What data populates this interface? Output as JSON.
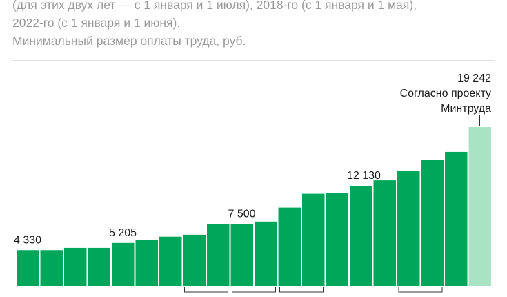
{
  "header": {
    "lines": [
      "(для этих двух лет — с 1 января и 1 июля), 2018-го (с 1 января и 1 мая),",
      "2022-го (с 1 января и 1 июня).",
      "Минимальный размер оплаты труда, руб."
    ]
  },
  "colors": {
    "bar": "#00a65a",
    "projected_bar": "#a8e3c3",
    "text": "#1a1a1a",
    "header_text": "#9a9a9a"
  },
  "chart_data": {
    "type": "bar",
    "title": "",
    "ylabel": "",
    "xlabel": "",
    "values": [
      4330,
      4330,
      4611,
      4611,
      5205,
      5554,
      5965,
      6204,
      7500,
      7500,
      7800,
      9489,
      11163,
      11280,
      12130,
      12792,
      13890,
      15279,
      16242,
      19242
    ],
    "projected_index": 19,
    "ylim": [
      0,
      20000
    ],
    "data_labels": [
      {
        "index": 0,
        "text": "4 330"
      },
      {
        "index": 4,
        "text": "5 205"
      },
      {
        "index": 9,
        "text": "7 500"
      },
      {
        "index": 14,
        "text": "12 130"
      },
      {
        "index": 19,
        "text": "19 242"
      }
    ],
    "annotation": {
      "index": 19,
      "lines": [
        "Согласно проекту",
        "Минтруда"
      ]
    },
    "year_brackets": [
      [
        7,
        8
      ],
      [
        9,
        10
      ],
      [
        11,
        12
      ],
      [
        16,
        17
      ]
    ]
  }
}
